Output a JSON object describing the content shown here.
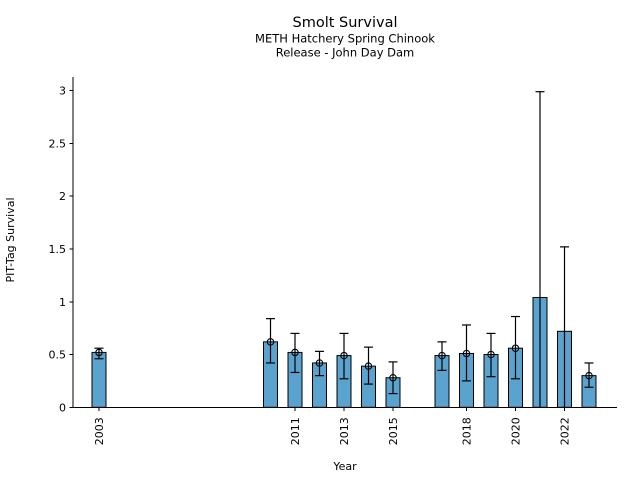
{
  "figure": {
    "title": "Smolt Survival",
    "subtitle1": "METH Hatchery Spring Chinook",
    "subtitle2": "Release - John Day Dam",
    "xlabel": "Year",
    "ylabel": "PIT-Tag Survival"
  },
  "chart_data": {
    "type": "bar",
    "title": "Smolt Survival",
    "subtitle": [
      "METH Hatchery Spring Chinook",
      "Release - John Day Dam"
    ],
    "xlabel": "Year",
    "ylabel": "PIT-Tag Survival",
    "ylim": [
      0,
      3.13
    ],
    "yticks": [
      0,
      0.5,
      1,
      1.5,
      2,
      2.5,
      3
    ],
    "ytick_labels": [
      "0",
      "0.5",
      "1",
      "1.5",
      "2",
      "2.5",
      "3"
    ],
    "xtick_labels": [
      "2003",
      "2011",
      "2013",
      "2015",
      "2018",
      "2020",
      "2022"
    ],
    "grid": false,
    "legend": "none",
    "bar_color": "#5BA3CF",
    "bar_edge_color": "#000000",
    "error_color": "#000000",
    "marker_style": "open-circle",
    "series": [
      {
        "name": "PIT-Tag Survival",
        "points": [
          {
            "year": 2003,
            "value": 0.52,
            "err_lo": 0.46,
            "err_hi": 0.56,
            "marker": true
          },
          {
            "year": 2010,
            "value": 0.62,
            "err_lo": 0.42,
            "err_hi": 0.84,
            "marker": true
          },
          {
            "year": 2011,
            "value": 0.52,
            "err_lo": 0.33,
            "err_hi": 0.7,
            "marker": true
          },
          {
            "year": 2012,
            "value": 0.42,
            "err_lo": 0.3,
            "err_hi": 0.53,
            "marker": true
          },
          {
            "year": 2013,
            "value": 0.49,
            "err_lo": 0.27,
            "err_hi": 0.7,
            "marker": true
          },
          {
            "year": 2014,
            "value": 0.39,
            "err_lo": 0.22,
            "err_hi": 0.57,
            "marker": true
          },
          {
            "year": 2015,
            "value": 0.28,
            "err_lo": 0.13,
            "err_hi": 0.43,
            "marker": true
          },
          {
            "year": 2017,
            "value": 0.49,
            "err_lo": 0.35,
            "err_hi": 0.62,
            "marker": true
          },
          {
            "year": 2018,
            "value": 0.51,
            "err_lo": 0.25,
            "err_hi": 0.78,
            "marker": true
          },
          {
            "year": 2019,
            "value": 0.5,
            "err_lo": 0.29,
            "err_hi": 0.7,
            "marker": true
          },
          {
            "year": 2020,
            "value": 0.56,
            "err_lo": 0.27,
            "err_hi": 0.86,
            "marker": true
          },
          {
            "year": 2021,
            "value": 1.04,
            "err_lo": 0.0,
            "err_hi": 2.99,
            "marker": false
          },
          {
            "year": 2022,
            "value": 0.72,
            "err_lo": 0.0,
            "err_hi": 1.52,
            "marker": false
          },
          {
            "year": 2023,
            "value": 0.3,
            "err_lo": 0.19,
            "err_hi": 0.42,
            "marker": true
          }
        ]
      }
    ]
  }
}
